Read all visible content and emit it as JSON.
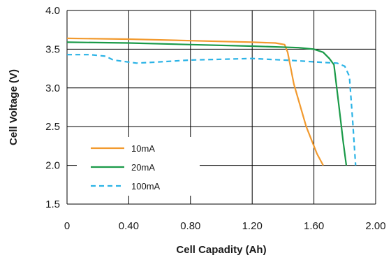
{
  "chart_data": {
    "type": "line",
    "xlabel": "Cell Capadity (Ah)",
    "ylabel": "Cell Voltage (V)",
    "xlim": [
      0,
      2.0
    ],
    "ylim": [
      1.5,
      4.0
    ],
    "x_ticks": [
      "0",
      "0.40",
      "0.80",
      "1.20",
      "1.60",
      "2.00"
    ],
    "x_tick_values": [
      0,
      0.4,
      0.8,
      1.2,
      1.6,
      2.0
    ],
    "y_ticks": [
      "1.5",
      "2.0",
      "2.5",
      "3.0",
      "3.5",
      "4.0"
    ],
    "y_tick_values": [
      1.5,
      2.0,
      2.5,
      3.0,
      3.5,
      4.0
    ],
    "grid": true,
    "legend_position": "bottom-left",
    "series": [
      {
        "name": "10mA",
        "color": "#f29a2e",
        "dash": "solid",
        "points": [
          [
            0,
            3.64
          ],
          [
            0.4,
            3.63
          ],
          [
            0.8,
            3.61
          ],
          [
            1.2,
            3.59
          ],
          [
            1.35,
            3.58
          ],
          [
            1.41,
            3.56
          ],
          [
            1.43,
            3.46
          ],
          [
            1.47,
            3.05
          ],
          [
            1.55,
            2.5
          ],
          [
            1.62,
            2.15
          ],
          [
            1.66,
            2.0
          ]
        ]
      },
      {
        "name": "20mA",
        "color": "#1a9a48",
        "dash": "solid",
        "points": [
          [
            0,
            3.59
          ],
          [
            0.4,
            3.58
          ],
          [
            0.8,
            3.56
          ],
          [
            1.2,
            3.54
          ],
          [
            1.5,
            3.52
          ],
          [
            1.6,
            3.5
          ],
          [
            1.66,
            3.46
          ],
          [
            1.7,
            3.38
          ],
          [
            1.73,
            3.3
          ],
          [
            1.76,
            2.8
          ],
          [
            1.79,
            2.3
          ],
          [
            1.81,
            2.0
          ]
        ]
      },
      {
        "name": "100mA",
        "color": "#2bb3e6",
        "dash": "dashed",
        "points": [
          [
            0,
            3.43
          ],
          [
            0.15,
            3.43
          ],
          [
            0.25,
            3.41
          ],
          [
            0.3,
            3.36
          ],
          [
            0.45,
            3.32
          ],
          [
            0.55,
            3.33
          ],
          [
            0.8,
            3.36
          ],
          [
            1.0,
            3.37
          ],
          [
            1.2,
            3.38
          ],
          [
            1.5,
            3.35
          ],
          [
            1.65,
            3.33
          ],
          [
            1.75,
            3.32
          ],
          [
            1.8,
            3.28
          ],
          [
            1.83,
            3.15
          ],
          [
            1.85,
            2.6
          ],
          [
            1.87,
            2.0
          ]
        ]
      }
    ]
  }
}
